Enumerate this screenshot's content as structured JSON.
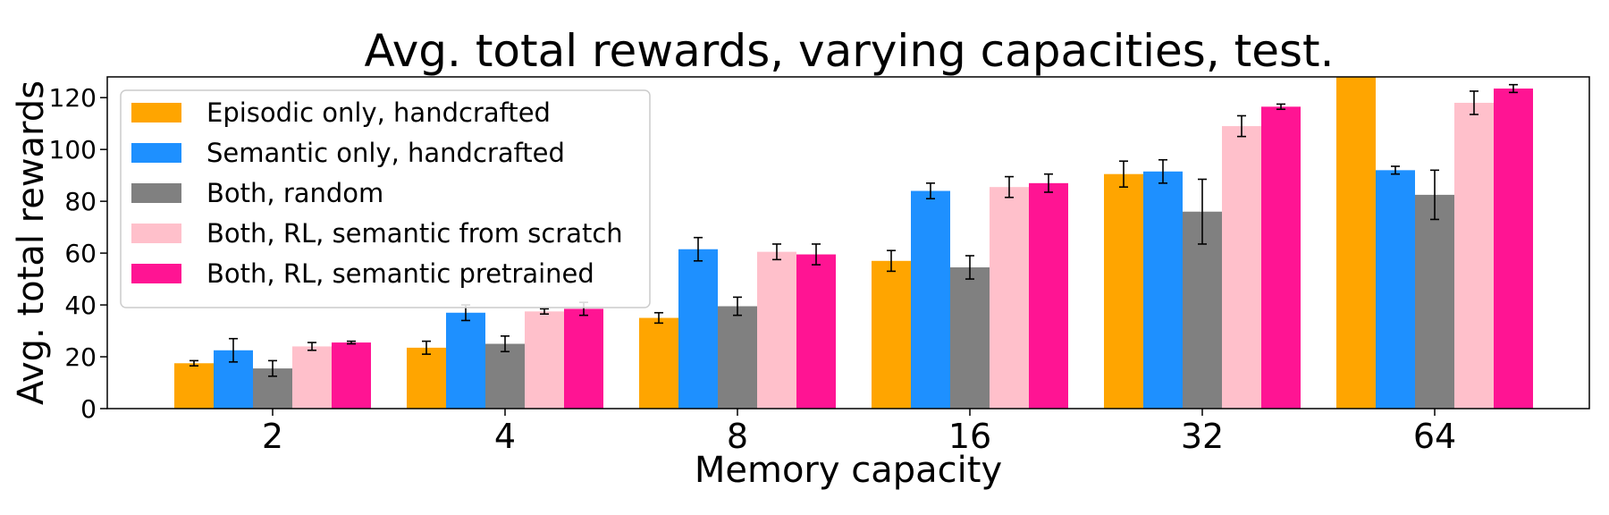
{
  "chart_data": {
    "type": "bar",
    "title": "Avg. total rewards, varying capacities, test.",
    "xlabel": "Memory capacity",
    "ylabel": "Avg. total rewards",
    "categories": [
      "2",
      "4",
      "8",
      "16",
      "32",
      "64"
    ],
    "ylim": [
      0,
      128
    ],
    "yticks": [
      "0",
      "20",
      "40",
      "60",
      "80",
      "100",
      "120"
    ],
    "grid": false,
    "legend_position": "top-left",
    "series": [
      {
        "name": "Episodic only, handcrafted",
        "color": "#FFA500",
        "values": [
          17.5,
          23.5,
          35,
          57,
          90.5,
          128
        ],
        "errors": [
          1,
          2.5,
          2,
          4,
          5,
          0
        ]
      },
      {
        "name": "Semantic only, handcrafted",
        "color": "#1E90FF",
        "values": [
          22.5,
          37,
          61.5,
          84,
          91.5,
          92
        ],
        "errors": [
          4.5,
          3,
          4.5,
          3,
          4.5,
          1.5
        ]
      },
      {
        "name": "Both, random",
        "color": "#808080",
        "values": [
          15.5,
          25,
          39.5,
          54.5,
          76,
          82.5
        ],
        "errors": [
          3,
          3,
          3.5,
          4.5,
          12.5,
          9.5
        ]
      },
      {
        "name": "Both, RL, semantic from scratch",
        "color": "#FFC0CB",
        "values": [
          24,
          37.5,
          60.5,
          85.5,
          109,
          118
        ],
        "errors": [
          1.5,
          1,
          3,
          4,
          4,
          4.5
        ]
      },
      {
        "name": "Both, RL, semantic pretrained",
        "color": "#FF1493",
        "values": [
          25.5,
          38.5,
          59.5,
          87,
          116.5,
          123.5
        ],
        "errors": [
          0.5,
          2.5,
          4,
          3.5,
          1,
          1.5
        ]
      }
    ]
  }
}
